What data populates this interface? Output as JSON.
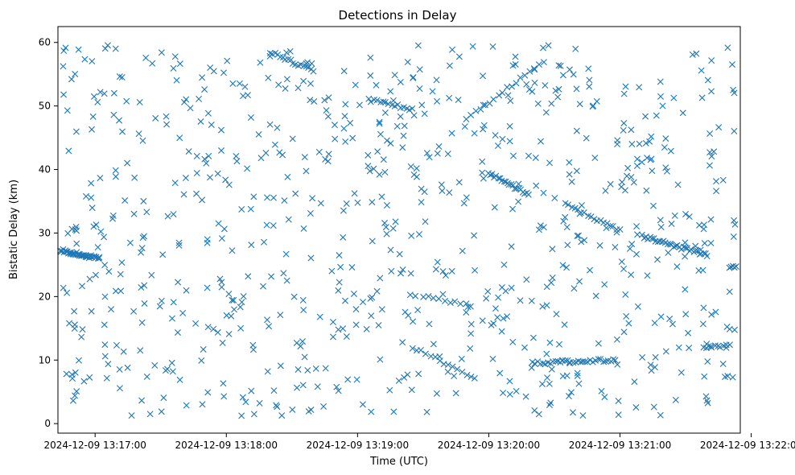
{
  "chart_data": {
    "type": "scatter",
    "title": "Detections in Delay",
    "xlabel": "Time (UTC)",
    "ylabel": "Bistatic Delay (km)",
    "marker": "x",
    "color": "#1f77b4",
    "grid": false,
    "x_unit": "seconds_after_2024-12-09T13:16:00Z",
    "xlim": [
      "2024-12-09 13:16:43",
      "2024-12-09 13:21:55"
    ],
    "ylim": [
      -1.5,
      62.5
    ],
    "x_ticks": [
      "2024-12-09 13:17:00",
      "2024-12-09 13:18:00",
      "2024-12-09 13:19:00",
      "2024-12-09 13:20:00",
      "2024-12-09 13:21:00",
      "2024-12-09 13:22:00"
    ],
    "y_ticks": [
      "0",
      "10",
      "20",
      "30",
      "40",
      "50",
      "60"
    ],
    "tracks": [
      {
        "t_start": "2024-12-09 13:16:44",
        "t_end": "2024-12-09 13:17:02",
        "y_start": 27.3,
        "y_end": 26.0,
        "n": 40
      },
      {
        "t_start": "2024-12-09 13:18:20",
        "t_end": "2024-12-09 13:18:40",
        "y_start": 58.5,
        "y_end": 55.5,
        "n": 18
      },
      {
        "t_start": "2024-12-09 13:19:05",
        "t_end": "2024-12-09 13:19:25",
        "y_start": 51.0,
        "y_end": 49.5,
        "n": 16
      },
      {
        "t_start": "2024-12-09 13:19:25",
        "t_end": "2024-12-09 13:19:52",
        "y_start": 12.0,
        "y_end": 7.5,
        "n": 14
      },
      {
        "t_start": "2024-12-09 13:19:30",
        "t_end": "2024-12-09 13:19:52",
        "y_start": 20.0,
        "y_end": 18.5,
        "n": 10
      },
      {
        "t_start": "2024-12-09 13:19:50",
        "t_end": "2024-12-09 13:20:25",
        "y_start": 48.0,
        "y_end": 57.0,
        "n": 18
      },
      {
        "t_start": "2024-12-09 13:20:00",
        "t_end": "2024-12-09 13:20:18",
        "y_start": 39.5,
        "y_end": 36.0,
        "n": 22
      },
      {
        "t_start": "2024-12-09 13:20:20",
        "t_end": "2024-12-09 13:20:58",
        "y_start": 9.5,
        "y_end": 10.0,
        "n": 34
      },
      {
        "t_start": "2024-12-09 13:20:35",
        "t_end": "2024-12-09 13:21:00",
        "y_start": 34.5,
        "y_end": 30.5,
        "n": 18
      },
      {
        "t_start": "2024-12-09 13:21:10",
        "t_end": "2024-12-09 13:21:40",
        "y_start": 29.5,
        "y_end": 26.5,
        "n": 34
      },
      {
        "t_start": "2024-12-09 13:21:38",
        "t_end": "2024-12-09 13:21:50",
        "y_start": 12.0,
        "y_end": 12.3,
        "n": 10
      },
      {
        "t_start": "2024-12-09 13:21:50",
        "t_end": "2024-12-09 13:21:53",
        "y_start": 24.7,
        "y_end": 24.7,
        "n": 5
      }
    ],
    "background_points": 780,
    "background_seed": 20241209
  }
}
